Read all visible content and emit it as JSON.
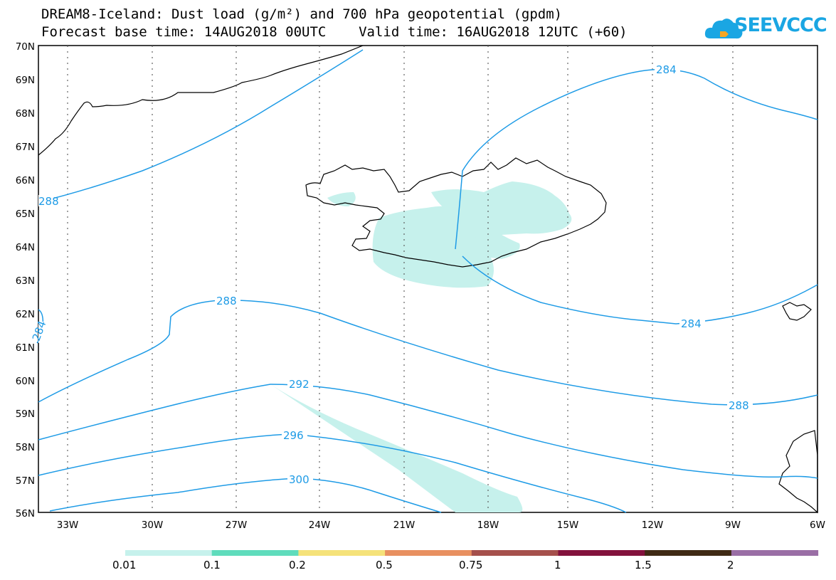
{
  "title": {
    "line1": "DREAM8-Iceland: Dust load (g/m²) and 700 hPa geopotential (gpdm)",
    "line2": "Forecast base time: 14AUG2018 00UTC    Valid time: 16AUG2018 12UTC (+60)"
  },
  "logo": {
    "text": "SEEVCCC",
    "icon": "cloud-icon",
    "color": "#1aa6e3"
  },
  "map": {
    "lat_labels": [
      "70N",
      "69N",
      "68N",
      "67N",
      "66N",
      "65N",
      "64N",
      "63N",
      "62N",
      "61N",
      "60N",
      "59N",
      "58N",
      "57N",
      "56N"
    ],
    "lon_labels": [
      "33W",
      "30W",
      "27W",
      "24W",
      "21W",
      "18W",
      "15W",
      "12W",
      "9W",
      "6W"
    ],
    "contour_color": "#1e9be6",
    "contour_labels": [
      "288",
      "284",
      "288",
      "284",
      "284",
      "292",
      "288",
      "296",
      "300"
    ]
  },
  "colorbar": {
    "colors": [
      "#c6f1ec",
      "#5fdcbc",
      "#f5e27a",
      "#e89060",
      "#a5504c",
      "#82113c",
      "#3f2a14",
      "#9a6ea5"
    ],
    "labels": [
      "0.01",
      "0.1",
      "0.2",
      "0.5",
      "0.75",
      "1",
      "1.5",
      "2"
    ]
  }
}
